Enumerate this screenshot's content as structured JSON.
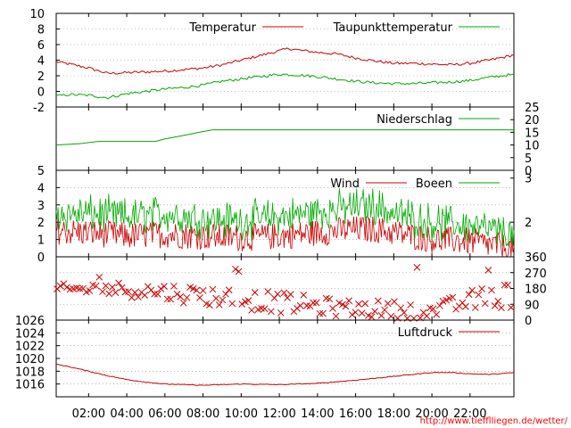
{
  "chart_data": {
    "type": "line",
    "source_url": "http://www.tiefflliegen.de/wetter/",
    "x_ticks": [
      "02:00",
      "04:00",
      "06:00",
      "08:00",
      "10:00",
      "12:00",
      "14:00",
      "16:00",
      "18:00",
      "20:00",
      "22:00"
    ],
    "x_hours": [
      2,
      4,
      6,
      8,
      10,
      12,
      14,
      16,
      18,
      20,
      22
    ],
    "x_range": [
      0.3,
      24.3
    ],
    "colors": {
      "primary": "#cc0000",
      "secondary": "#00aa00",
      "grid": "#888888",
      "url": "#ff0000"
    },
    "panels": [
      {
        "id": "temperature",
        "ylim": [
          -2,
          10
        ],
        "left_ticks": [
          "10",
          "8",
          "6",
          "4",
          "2",
          "0",
          "-2"
        ],
        "left_tick_values": [
          10,
          8,
          6,
          4,
          2,
          0,
          -2
        ],
        "grid": true,
        "legend": [
          "Temperatur",
          "Taupunkttemperatur"
        ],
        "series": [
          {
            "name": "Temperatur",
            "color": "#cc0000",
            "x": [
              0.3,
              1,
              2,
              3,
              4,
              5,
              6,
              7,
              8,
              9,
              10,
              11,
              12,
              12.5,
              13,
              14,
              15,
              16,
              17,
              18,
              19,
              20,
              21,
              22,
              23,
              24,
              24.3
            ],
            "y": [
              3.8,
              3.5,
              3.0,
              2.3,
              2.4,
              2.5,
              2.6,
              2.8,
              3.0,
              3.4,
              4.0,
              4.6,
              5.2,
              5.5,
              5.3,
              5.0,
              4.8,
              4.3,
              3.9,
              3.6,
              3.6,
              3.5,
              3.4,
              3.6,
              4.0,
              4.5,
              4.7
            ]
          },
          {
            "name": "Taupunkttemperatur",
            "color": "#00aa00",
            "x": [
              0.3,
              1,
              2,
              3,
              4,
              5,
              6,
              7,
              8,
              9,
              10,
              11,
              12,
              13,
              14,
              15,
              16,
              17,
              18,
              19,
              20,
              21,
              22,
              23,
              24,
              24.3
            ],
            "y": [
              -0.6,
              -0.4,
              -0.5,
              -0.8,
              -0.3,
              0.0,
              0.3,
              0.5,
              0.8,
              1.3,
              1.6,
              1.9,
              2.2,
              2.1,
              1.9,
              1.6,
              1.3,
              1.1,
              1.0,
              1.0,
              1.1,
              1.2,
              1.4,
              1.8,
              2.1,
              2.1
            ]
          }
        ]
      },
      {
        "id": "precipitation",
        "ylim": [
          0,
          25
        ],
        "right_ticks": [
          "25",
          "20",
          "15",
          "10",
          "5",
          "0"
        ],
        "right_tick_values": [
          25,
          20,
          15,
          10,
          5,
          0
        ],
        "grid": false,
        "legend": [
          "Niederschlag"
        ],
        "series": [
          {
            "name": "Niederschlag",
            "color": "#00aa00",
            "x": [
              0.3,
              1.5,
              2.5,
              5.5,
              6.0,
              7.0,
              8.0,
              8.5,
              24.3
            ],
            "y": [
              10,
              10.5,
              11.4,
              11.4,
              12.4,
              13.8,
              15.3,
              16,
              16
            ]
          }
        ]
      },
      {
        "id": "wind",
        "ylim": [
          0,
          5
        ],
        "left_ticks": [
          "5",
          "4",
          "3",
          "2",
          "1",
          "0"
        ],
        "left_tick_values": [
          5,
          4,
          3,
          2,
          1,
          0
        ],
        "right_ticks": [
          "3",
          "2"
        ],
        "right_tick_values": [
          4.55,
          2.0
        ],
        "grid": true,
        "legend": [
          "Wind",
          "Boeen"
        ],
        "wind_profile": {
          "x": [
            0.3,
            2,
            4,
            6,
            8,
            10,
            12,
            14,
            16,
            17,
            18,
            20,
            22,
            24,
            24.3
          ],
          "mean": [
            1.5,
            1.4,
            1.2,
            1.3,
            1.2,
            1.1,
            1.2,
            1.4,
            1.6,
            1.6,
            1.4,
            1.0,
            0.9,
            0.5,
            0.3
          ],
          "gust_offset": [
            0.5,
            0.6,
            0.6,
            0.7,
            0.5,
            0.5,
            0.6,
            0.7,
            0.8,
            0.9,
            0.6,
            0.5,
            0.4,
            0.3,
            0.3
          ]
        },
        "series": [
          {
            "name": "Wind",
            "color": "#cc0000"
          },
          {
            "name": "Boeen",
            "color": "#00aa00"
          }
        ]
      },
      {
        "id": "wind_direction",
        "ylim": [
          0,
          360
        ],
        "right_ticks": [
          "360",
          "270",
          "180",
          "90",
          "0"
        ],
        "right_tick_values": [
          360,
          270,
          180,
          90,
          0
        ],
        "grid": true,
        "marker": "x",
        "marker_color": "#cc0000",
        "direction_profile": {
          "x": [
            0.3,
            3,
            6,
            9,
            12,
            15,
            18,
            20,
            22,
            24.3
          ],
          "center": [
            170,
            180,
            160,
            130,
            100,
            70,
            60,
            50,
            110,
            150
          ],
          "spread": [
            35,
            40,
            50,
            60,
            60,
            50,
            50,
            40,
            60,
            80
          ]
        }
      },
      {
        "id": "pressure",
        "ylim": [
          1014,
          1026
        ],
        "left_ticks": [
          "1026",
          "1024",
          "1022",
          "1020",
          "1018",
          "1016"
        ],
        "left_tick_values": [
          1026,
          1024,
          1022,
          1020,
          1018,
          1016
        ],
        "grid": true,
        "legend": [
          "Luftdruck"
        ],
        "series": [
          {
            "name": "Luftdruck",
            "color": "#cc0000",
            "x": [
              0.3,
              1,
              2,
              3,
              4,
              5,
              6,
              8,
              10,
              12,
              14,
              16,
              18,
              19,
              20,
              21,
              22,
              23,
              24,
              24.3
            ],
            "y": [
              1019.1,
              1018.7,
              1018.0,
              1017.3,
              1016.7,
              1016.3,
              1016.0,
              1015.8,
              1016.0,
              1015.9,
              1016.1,
              1016.6,
              1017.2,
              1017.5,
              1017.8,
              1017.8,
              1017.6,
              1017.5,
              1017.7,
              1017.8
            ]
          }
        ]
      }
    ]
  }
}
